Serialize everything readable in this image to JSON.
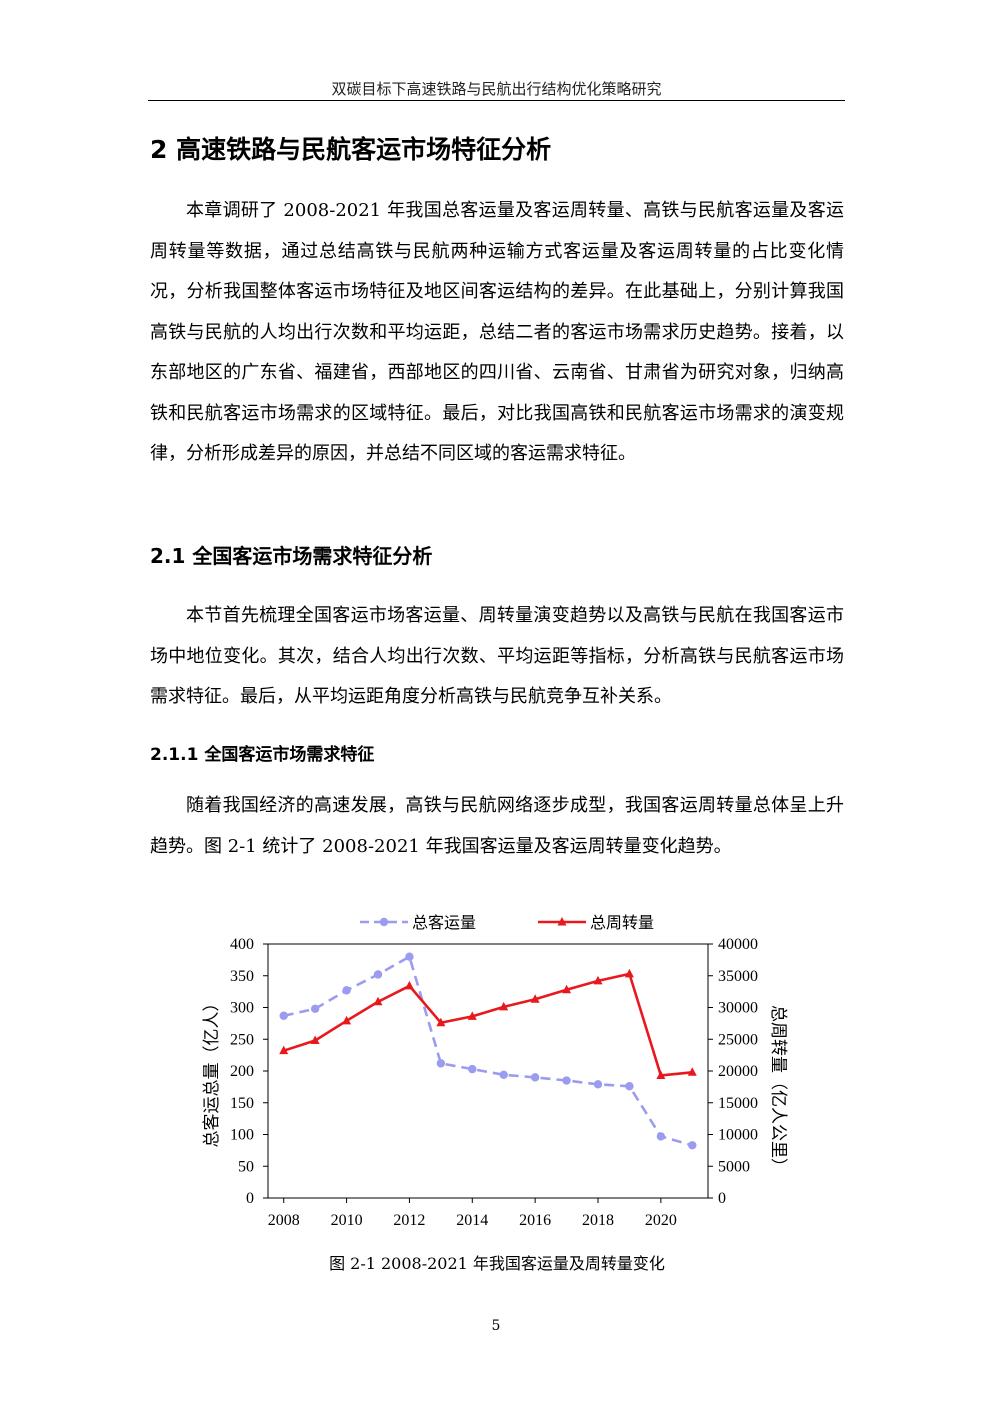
{
  "running_head": "双碳目标下高速铁路与民航出行结构优化策略研究",
  "chapter_title": "2  高速铁路与民航客运市场特征分析",
  "paragraph_1": "本章调研了 2008-2021 年我国总客运量及客运周转量、高铁与民航客运量及客运周转量等数据，通过总结高铁与民航两种运输方式客运量及客运周转量的占比变化情况，分析我国整体客运市场特征及地区间客运结构的差异。在此基础上，分别计算我国高铁与民航的人均出行次数和平均运距，总结二者的客运市场需求历史趋势。接着，以东部地区的广东省、福建省，西部地区的四川省、云南省、甘肃省为研究对象，归纳高铁和民航客运市场需求的区域特征。最后，对比我国高铁和民航客运市场需求的演变规律，分析形成差异的原因，并总结不同区域的客运需求特征。",
  "section_title": "2.1  全国客运市场需求特征分析",
  "paragraph_2": "本节首先梳理全国客运市场客运量、周转量演变趋势以及高铁与民航在我国客运市场中地位变化。其次，结合人均出行次数、平均运距等指标，分析高铁与民航客运市场需求特征。最后，从平均运距角度分析高铁与民航竞争互补关系。",
  "subsection_title": "2.1.1  全国客运市场需求特征",
  "paragraph_3": "随着我国经济的高速发展，高铁与民航网络逐步成型，我国客运周转量总体呈上升趋势。图 2-1 统计了 2008-2021 年我国客运量及客运周转量变化趋势。",
  "figure_caption": "图 2-1 2008-2021 年我国客运量及周转量变化",
  "page_number": "5",
  "chart_data": {
    "type": "line",
    "x": [
      2008,
      2009,
      2010,
      2011,
      2012,
      2013,
      2014,
      2015,
      2016,
      2017,
      2018,
      2019,
      2020,
      2021
    ],
    "x_ticks": [
      "2008",
      "2010",
      "2012",
      "2014",
      "2016",
      "2018",
      "2020"
    ],
    "xlim": [
      2007.5,
      2021.5
    ],
    "series": [
      {
        "name": "总客运量",
        "axis": "left",
        "style": "dashed",
        "marker": "circle",
        "color": "#9b9bf0",
        "values": [
          287,
          298,
          327,
          352,
          380,
          212,
          203,
          194,
          190,
          185,
          179,
          176,
          97,
          83
        ]
      },
      {
        "name": "总周转量",
        "axis": "right",
        "style": "solid",
        "marker": "triangle",
        "color": "#e8191e",
        "values": [
          23200,
          24800,
          27900,
          30900,
          33400,
          27600,
          28600,
          30100,
          31300,
          32800,
          34200,
          35300,
          19300,
          19800
        ]
      }
    ],
    "y_left": {
      "label": "总客运总量（亿人）",
      "ylim": [
        0,
        400
      ],
      "ticks": [
        "0",
        "50",
        "100",
        "150",
        "200",
        "250",
        "300",
        "350",
        "400"
      ]
    },
    "y_right": {
      "label": "总周转量（亿人公里）",
      "ylim": [
        0,
        40000
      ],
      "ticks": [
        "0",
        "5000",
        "10000",
        "15000",
        "20000",
        "25000",
        "30000",
        "35000",
        "40000"
      ]
    },
    "grid": false,
    "legend_position": "top"
  }
}
